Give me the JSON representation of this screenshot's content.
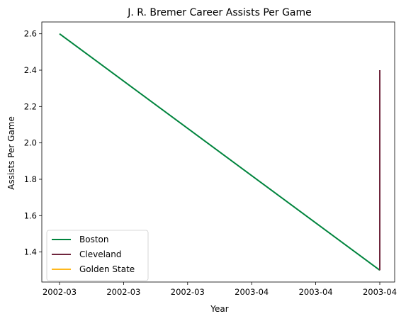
{
  "chart_data": {
    "type": "line",
    "title": "J. R. Bremer Career Assists Per Game",
    "xlabel": "Year",
    "ylabel": "Assists Per Game",
    "x_tick_labels": [
      "2002-03",
      "2002-03",
      "2002-03",
      "2003-04",
      "2003-04",
      "2003-04"
    ],
    "y_ticks": [
      1.4,
      1.6,
      1.8,
      2.0,
      2.2,
      2.4,
      2.6
    ],
    "y_tick_labels": [
      "1.4",
      "1.6",
      "1.8",
      "2.0",
      "2.2",
      "2.4",
      "2.6"
    ],
    "ylim": [
      1.235,
      2.665
    ],
    "grid": false,
    "legend_position": "lower-left",
    "series": [
      {
        "name": "Boston",
        "color": "#00843d",
        "x": [
          "2002-03",
          "2003-04"
        ],
        "values": [
          2.6,
          1.3
        ]
      },
      {
        "name": "Cleveland",
        "color": "#6f263d",
        "x": [
          "2003-04",
          "2003-04"
        ],
        "values": [
          1.3,
          2.4
        ]
      },
      {
        "name": "Golden State",
        "color": "#ffb81c",
        "x": [
          "2003-04"
        ],
        "values": [
          1.3
        ]
      }
    ]
  }
}
